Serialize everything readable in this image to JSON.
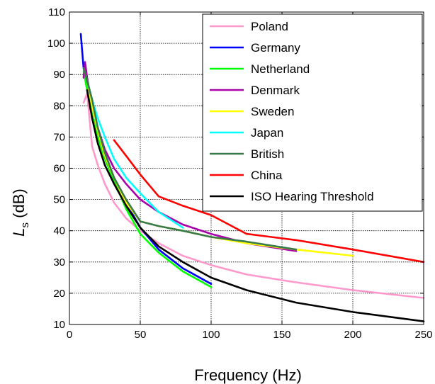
{
  "chart_data": {
    "type": "line",
    "xlabel": "Frequency (Hz)",
    "ylabel_main": "L",
    "ylabel_sub": "s",
    "ylabel_unit": " (dB)",
    "xlim": [
      0,
      250
    ],
    "ylim": [
      10,
      110
    ],
    "xticks": [
      0,
      50,
      100,
      150,
      200,
      250
    ],
    "yticks": [
      10,
      20,
      30,
      40,
      50,
      60,
      70,
      80,
      90,
      100,
      110
    ],
    "grid": true,
    "legend_position": "top-right",
    "series": [
      {
        "name": "Poland",
        "color": "#ff99cc",
        "x": [
          10,
          12.5,
          16,
          20,
          25,
          31.5,
          40,
          50,
          63,
          80,
          100,
          125,
          160,
          200,
          250
        ],
        "y": [
          81,
          84,
          67,
          61,
          55,
          49,
          44,
          40,
          36,
          32,
          29,
          26,
          23.5,
          21,
          18.5
        ]
      },
      {
        "name": "Germany",
        "color": "#0000ff",
        "x": [
          8,
          10,
          12.5,
          16,
          20,
          25,
          31.5,
          40,
          50,
          63,
          80,
          100
        ],
        "y": [
          103,
          92,
          85,
          77,
          71,
          64,
          57,
          49,
          41,
          34,
          28,
          23
        ]
      },
      {
        "name": "Netherland",
        "color": "#00ff00",
        "x": [
          10,
          12.5,
          16,
          20,
          25,
          31.5,
          40,
          50,
          63,
          80,
          100
        ],
        "y": [
          91,
          85,
          77,
          70,
          63,
          56,
          47,
          39,
          33,
          27,
          22
        ]
      },
      {
        "name": "Denmark",
        "color": "#aa00aa",
        "x": [
          10,
          11,
          12.5,
          16,
          20,
          25,
          31.5,
          40,
          50,
          63,
          80,
          100,
          125,
          160
        ],
        "y": [
          89,
          94,
          89,
          80,
          73,
          66,
          60,
          55,
          50,
          46,
          42,
          39,
          36,
          33.5
        ]
      },
      {
        "name": "Sweden",
        "color": "#ffff00",
        "x": [
          10,
          12.5,
          16,
          20,
          25,
          31.5,
          40,
          50,
          63,
          80,
          100,
          125,
          160,
          200
        ],
        "y": [
          92,
          88,
          80,
          72,
          64,
          57,
          49,
          43,
          41.5,
          40,
          38,
          36,
          34,
          32
        ]
      },
      {
        "name": "Japan",
        "color": "#00ffff",
        "x": [
          10,
          12.5,
          16,
          20,
          25,
          31.5,
          40,
          50,
          63,
          80
        ],
        "y": [
          92,
          88,
          82,
          76,
          70,
          63,
          57,
          52,
          46,
          41
        ]
      },
      {
        "name": "British",
        "color": "#3a7a4a",
        "x": [
          10,
          12.5,
          16,
          20,
          25,
          31.5,
          40,
          50,
          63,
          80,
          100,
          125,
          160
        ],
        "y": [
          92,
          88,
          82,
          73,
          65,
          57,
          50,
          43,
          41.5,
          40,
          38,
          36.5,
          34
        ]
      },
      {
        "name": "China",
        "color": "#ff0000",
        "x": [
          31.5,
          40,
          50,
          63,
          80,
          100,
          125,
          160,
          200,
          250
        ],
        "y": [
          69,
          64,
          58,
          51,
          48,
          45,
          39,
          37,
          34,
          30
        ]
      },
      {
        "name": "ISO Hearing Threshold",
        "color": "#000000",
        "x": [
          12.5,
          16,
          20,
          25,
          31.5,
          40,
          50,
          63,
          80,
          100,
          125,
          160,
          200,
          250
        ],
        "y": [
          85,
          76,
          68,
          61,
          55,
          48,
          41,
          35,
          30,
          25,
          21,
          17,
          14,
          11
        ]
      }
    ]
  }
}
